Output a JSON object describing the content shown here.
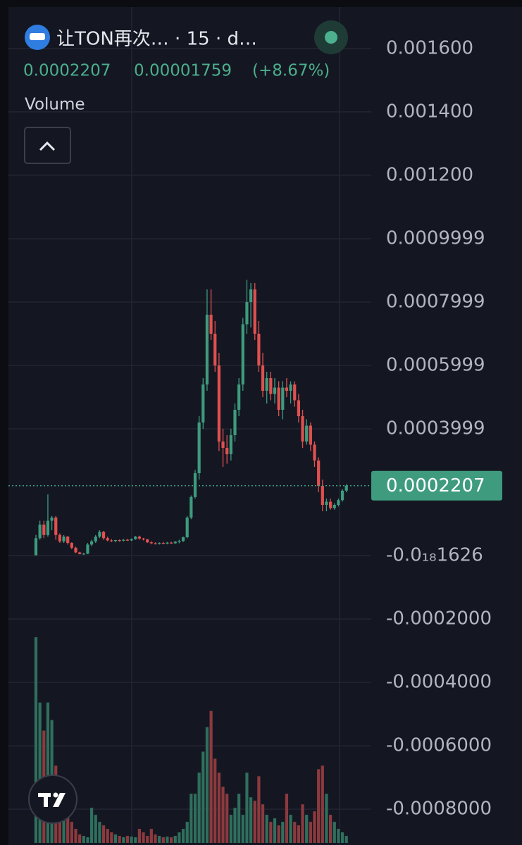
{
  "header": {
    "title": "让TON再次… · 15 · d…",
    "last": "0.0002207",
    "change": "0.00001759",
    "change_pct": "(+8.67%)",
    "indicator": "Volume"
  },
  "chart_data": {
    "type": "candlestick",
    "ylim": [
      -0.000913,
      0.001753
    ],
    "yticks": [
      {
        "value": 0.0016,
        "label": "0.001600"
      },
      {
        "value": 0.0014,
        "label": "0.001400"
      },
      {
        "value": 0.0012,
        "label": "0.001200"
      },
      {
        "value": 0.0009999,
        "label": "0.0009999"
      },
      {
        "value": 0.0007999,
        "label": "0.0007999"
      },
      {
        "value": 0.0005999,
        "label": "0.0005999"
      },
      {
        "value": 0.0003999,
        "label": "0.0003999"
      },
      {
        "value": -1.626e-19,
        "label": "-0.0₁₈1626"
      },
      {
        "value": -0.0002,
        "label": "-0.0002000"
      },
      {
        "value": -0.0004,
        "label": "-0.0004000"
      },
      {
        "value": -0.0006,
        "label": "-0.0006000"
      },
      {
        "value": -0.0008,
        "label": "-0.0008000"
      }
    ],
    "grid": true,
    "last_price": 0.0002207,
    "up_color": "#3e9b7e",
    "down_color": "#e0504f",
    "volume_up_color": "#2f6f5d",
    "volume_down_color": "#8c3a3e",
    "open": [
      1e-06,
      5.5e-05,
      9.8e-05,
      6.5e-05,
      0.00011,
      0.00012,
      6.5e-05,
      4.5e-05,
      6e-05,
      4e-05,
      2.5e-05,
      1e-05,
      5e-06,
      6e-06,
      3.5e-05,
      4.5e-05,
      6e-05,
      7.5e-05,
      5.5e-05,
      4.8e-05,
      4.6e-05,
      4.9e-05,
      4.7e-05,
      5e-05,
      4.8e-05,
      5.2e-05,
      6e-05,
      5.4e-05,
      5.1e-05,
      4.2e-05,
      3.9e-05,
      3.8e-05,
      4e-05,
      3.8e-05,
      4.1e-05,
      3.9e-05,
      4.4e-05,
      4.6e-05,
      5.8e-05,
      0.00012,
      0.000185,
      0.00026,
      0.00042,
      0.00054,
      0.00076,
      0.0007,
      0.0006,
      0.00036,
      0.00034,
      0.00032,
      0.00038,
      0.00046,
      0.00054,
      0.00073,
      0.0008,
      0.00084,
      0.0007,
      0.0006,
      0.00052,
      0.00056,
      0.00051,
      0.00053,
      0.00046,
      0.00053,
      0.00052,
      0.00054,
      0.00049,
      0.00044,
      0.00036,
      0.00041,
      0.00035,
      0.0003,
      0.00022,
      0.00016,
      0.00017,
      0.00015,
      0.00016,
      0.000175,
      0.000205
    ],
    "high": [
      6.5e-05,
      0.00011,
      0.00011,
      0.000193,
      0.000125,
      0.000125,
      7e-05,
      6.5e-05,
      6.2e-05,
      4.2e-05,
      2.8e-05,
      1.2e-05,
      9e-06,
      4e-05,
      5e-05,
      6.5e-05,
      8e-05,
      7.8e-05,
      6e-05,
      5.2e-05,
      5e-05,
      5.1e-05,
      5.2e-05,
      5.3e-05,
      5.4e-05,
      6.2e-05,
      6.3e-05,
      5.6e-05,
      5.3e-05,
      4.5e-05,
      4.2e-05,
      4.2e-05,
      4.3e-05,
      4.3e-05,
      4.4e-05,
      4.6e-05,
      5e-05,
      6e-05,
      0.000125,
      0.00019,
      0.00027,
      0.00044,
      0.00056,
      0.00084,
      0.00084,
      0.00074,
      0.00064,
      0.0004,
      0.00038,
      0.0004,
      0.00048,
      0.00056,
      0.00075,
      0.00087,
      0.00086,
      0.00086,
      0.00074,
      0.00064,
      0.00058,
      0.00058,
      0.00056,
      0.00055,
      0.00055,
      0.00056,
      0.00055,
      0.00055,
      0.00051,
      0.00046,
      0.00043,
      0.00042,
      0.00036,
      0.00031,
      0.00024,
      0.00018,
      0.00018,
      0.000165,
      0.00018,
      0.00021,
      0.000225
    ],
    "low": [
      1e-06,
      5e-05,
      5.5e-05,
      6e-05,
      8e-05,
      5e-05,
      4e-05,
      4e-05,
      3.5e-05,
      2e-05,
      8e-06,
      4e-06,
      3e-06,
      5e-06,
      3e-05,
      4e-05,
      5.5e-05,
      5e-05,
      4.5e-05,
      4.3e-05,
      4.2e-05,
      4.4e-05,
      4.5e-05,
      4.6e-05,
      4.6e-05,
      5e-05,
      5e-05,
      4.8e-05,
      4e-05,
      3.6e-05,
      3.5e-05,
      3.5e-05,
      3.6e-05,
      3.6e-05,
      3.7e-05,
      3.7e-05,
      3.9e-05,
      4.3e-05,
      5.5e-05,
      0.000115,
      0.00018,
      0.00024,
      0.0004,
      0.00052,
      0.00068,
      0.00058,
      0.00033,
      0.00028,
      0.00029,
      0.0003,
      0.00036,
      0.00044,
      0.00052,
      0.0007,
      0.00072,
      0.00068,
      0.00058,
      0.0005,
      0.00048,
      0.00049,
      0.00048,
      0.00044,
      0.00043,
      0.0005,
      0.00048,
      0.00047,
      0.00042,
      0.00034,
      0.00035,
      0.00033,
      0.00028,
      0.0002,
      0.00014,
      0.00014,
      0.000145,
      0.000145,
      0.000155,
      0.00017,
      0.0002
    ],
    "close": [
      5.5e-05,
      9.8e-05,
      6.5e-05,
      0.00011,
      0.00012,
      6.5e-05,
      4.5e-05,
      6e-05,
      4e-05,
      2.5e-05,
      1e-05,
      5e-06,
      6e-06,
      3.5e-05,
      4.5e-05,
      6e-05,
      7.5e-05,
      5.5e-05,
      4.8e-05,
      4.6e-05,
      4.9e-05,
      4.7e-05,
      5e-05,
      4.8e-05,
      5.2e-05,
      6e-05,
      5.4e-05,
      5.1e-05,
      4.2e-05,
      3.9e-05,
      3.8e-05,
      4e-05,
      3.8e-05,
      4.1e-05,
      3.9e-05,
      4.4e-05,
      4.6e-05,
      5.8e-05,
      0.00012,
      0.000185,
      0.00026,
      0.00042,
      0.00054,
      0.00076,
      0.0007,
      0.0006,
      0.00036,
      0.00034,
      0.00032,
      0.00038,
      0.00046,
      0.00054,
      0.00073,
      0.0008,
      0.00084,
      0.0007,
      0.0006,
      0.00052,
      0.00056,
      0.00051,
      0.00053,
      0.00046,
      0.00053,
      0.00052,
      0.00054,
      0.00049,
      0.00044,
      0.00036,
      0.00041,
      0.00035,
      0.0003,
      0.00022,
      0.00016,
      0.00017,
      0.00015,
      0.00016,
      0.000175,
      0.000205,
      0.0002207
    ],
    "volume": [
      293,
      200,
      160,
      200,
      175,
      110,
      80,
      60,
      40,
      30,
      20,
      12,
      10,
      8,
      50,
      40,
      30,
      25,
      20,
      15,
      12,
      10,
      8,
      10,
      9,
      8,
      20,
      15,
      10,
      20,
      12,
      10,
      8,
      9,
      8,
      10,
      15,
      20,
      30,
      70,
      70,
      100,
      130,
      165,
      188,
      120,
      100,
      80,
      70,
      40,
      50,
      70,
      40,
      100,
      65,
      60,
      95,
      55,
      40,
      30,
      35,
      25,
      30,
      70,
      40,
      30,
      25,
      55,
      40,
      30,
      45,
      105,
      110,
      70,
      40,
      30,
      20,
      15,
      10
    ]
  }
}
